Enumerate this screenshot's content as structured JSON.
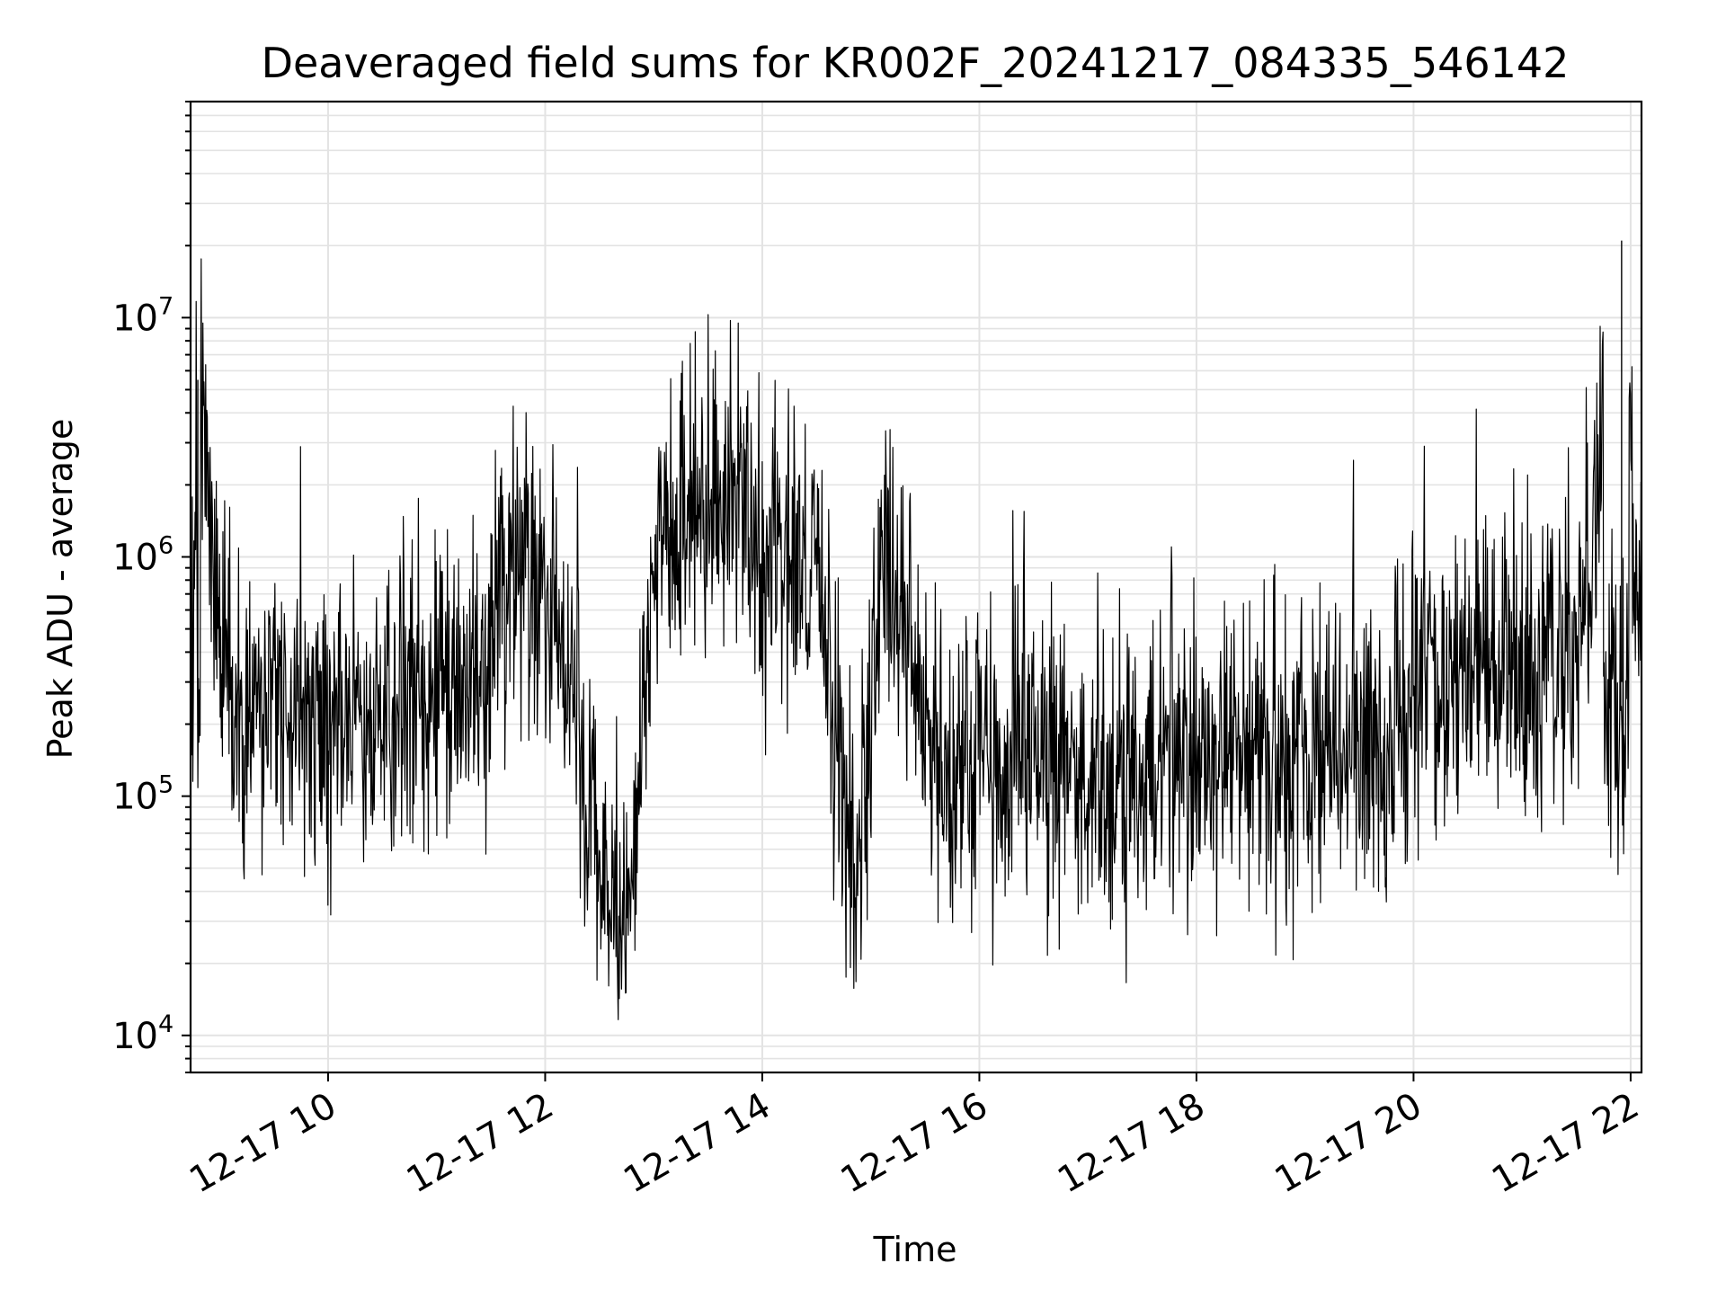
{
  "chart_data": {
    "type": "line",
    "title": "Deaveraged field sums for KR002F_20241217_084335_546142",
    "xlabel": "Time",
    "ylabel": "Peak ADU - average",
    "y_scale": "log",
    "ylim": [
      7000,
      80000000
    ],
    "xlim": [
      "2024-12-17 08:44",
      "2024-12-17 22:06"
    ],
    "x_ticks": [
      {
        "t": "2024-12-17 10:00",
        "label": "12-17 10"
      },
      {
        "t": "2024-12-17 12:00",
        "label": "12-17 12"
      },
      {
        "t": "2024-12-17 14:00",
        "label": "12-17 14"
      },
      {
        "t": "2024-12-17 16:00",
        "label": "12-17 16"
      },
      {
        "t": "2024-12-17 18:00",
        "label": "12-17 18"
      },
      {
        "t": "2024-12-17 20:00",
        "label": "12-17 20"
      },
      {
        "t": "2024-12-17 22:00",
        "label": "12-17 22"
      }
    ],
    "y_ticks": [
      {
        "value": 10000,
        "base": "10",
        "exp": "4"
      },
      {
        "value": 100000,
        "base": "10",
        "exp": "5"
      },
      {
        "value": 1000000,
        "base": "10",
        "exp": "6"
      },
      {
        "value": 10000000,
        "base": "10",
        "exp": "7"
      }
    ],
    "grid": true,
    "line_color": "#000000",
    "grid_color": "#e3e3e3",
    "series": [
      {
        "x": [
          "2024-12-17 08:45",
          "2024-12-17 08:48",
          "2024-12-17 09:00",
          "2024-12-17 09:20",
          "2024-12-17 09:40",
          "2024-12-17 10:00",
          "2024-12-17 10:20",
          "2024-12-17 10:40",
          "2024-12-17 11:00",
          "2024-12-17 11:15",
          "2024-12-17 11:30",
          "2024-12-17 11:40",
          "2024-12-17 11:50",
          "2024-12-17 12:00",
          "2024-12-17 12:10",
          "2024-12-17 12:20",
          "2024-12-17 12:30",
          "2024-12-17 12:40",
          "2024-12-17 12:45",
          "2024-12-17 12:50",
          "2024-12-17 13:00",
          "2024-12-17 13:15",
          "2024-12-17 13:30",
          "2024-12-17 13:45",
          "2024-12-17 14:00",
          "2024-12-17 14:15",
          "2024-12-17 14:30",
          "2024-12-17 14:45",
          "2024-12-17 14:55",
          "2024-12-17 15:05",
          "2024-12-17 15:15",
          "2024-12-17 15:25",
          "2024-12-17 15:35",
          "2024-12-17 15:45",
          "2024-12-17 16:00",
          "2024-12-17 16:30",
          "2024-12-17 17:00",
          "2024-12-17 17:30",
          "2024-12-17 18:00",
          "2024-12-17 18:30",
          "2024-12-17 19:00",
          "2024-12-17 19:30",
          "2024-12-17 19:55",
          "2024-12-17 20:05",
          "2024-12-17 20:30",
          "2024-12-17 21:00",
          "2024-12-17 21:30",
          "2024-12-17 21:55",
          "2024-12-17 22:05"
        ],
        "y": [
          300000,
          5500000,
          450000,
          230000,
          220000,
          200000,
          190000,
          210000,
          260000,
          280000,
          320000,
          900000,
          1100000,
          500000,
          450000,
          200000,
          45000,
          30000,
          20000,
          90000,
          1200000,
          1500000,
          1800000,
          1600000,
          900000,
          1000000,
          1100000,
          100000,
          80000,
          900000,
          700000,
          280000,
          140000,
          120000,
          150000,
          140000,
          120000,
          125000,
          140000,
          145000,
          150000,
          160000,
          170000,
          380000,
          320000,
          350000,
          330000,
          21000000,
          350000
        ]
      }
    ]
  }
}
